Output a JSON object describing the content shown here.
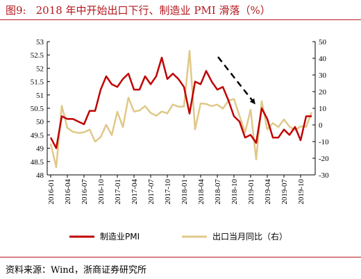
{
  "header": {
    "figure_number": "图9:",
    "title_text": "2018 年中开始出口下行、制造业 PMI 滑落（%）"
  },
  "source": {
    "text": "资料来源：Wind，浙商证券研究所"
  },
  "chart_data": {
    "type": "line",
    "x": [
      "2016-01",
      "2016-02",
      "2016-03",
      "2016-04",
      "2016-05",
      "2016-06",
      "2016-07",
      "2016-08",
      "2016-09",
      "2016-10",
      "2016-11",
      "2016-12",
      "2017-01",
      "2017-02",
      "2017-03",
      "2017-04",
      "2017-05",
      "2017-06",
      "2017-07",
      "2017-08",
      "2017-09",
      "2017-10",
      "2017-11",
      "2017-12",
      "2018-01",
      "2018-02",
      "2018-03",
      "2018-04",
      "2018-05",
      "2018-06",
      "2018-07",
      "2018-08",
      "2018-09",
      "2018-10",
      "2018-11",
      "2018-12",
      "2019-01",
      "2019-02",
      "2019-03",
      "2019-04",
      "2019-05",
      "2019-06",
      "2019-07",
      "2019-08",
      "2019-09",
      "2019-10",
      "2019-11",
      "2019-12"
    ],
    "x_tick_labels": [
      "2016-01",
      "2016-04",
      "2016-07",
      "2016-10",
      "2017-01",
      "2017-04",
      "2017-07",
      "2017-10",
      "2018-01",
      "2018-04",
      "2018-07",
      "2018-10",
      "2019-01",
      "2019-04",
      "2019-07",
      "2019-10"
    ],
    "series": [
      {
        "name": "制造业PMI",
        "axis": "left",
        "color": "#c00000",
        "values": [
          49.4,
          49.0,
          50.2,
          50.1,
          50.1,
          50.0,
          49.9,
          50.4,
          50.4,
          51.2,
          51.7,
          51.4,
          51.3,
          51.6,
          51.8,
          51.2,
          51.2,
          51.7,
          51.4,
          51.7,
          52.4,
          51.6,
          51.8,
          51.6,
          51.3,
          50.3,
          51.5,
          51.4,
          51.9,
          51.5,
          51.2,
          51.3,
          50.8,
          50.2,
          50.0,
          49.4,
          49.5,
          49.2,
          50.5,
          50.1,
          49.4,
          49.4,
          49.7,
          49.5,
          49.8,
          49.3,
          50.2,
          50.2
        ]
      },
      {
        "name": "出口当月同比（右）",
        "axis": "right",
        "color": "#e0c888",
        "values": [
          -11.2,
          -25.4,
          11.5,
          -1.8,
          -4.1,
          -4.8,
          -4.4,
          -2.8,
          -10.0,
          -7.3,
          0.1,
          -6.1,
          7.9,
          -1.3,
          16.4,
          8.0,
          8.7,
          11.3,
          7.2,
          5.5,
          8.1,
          6.9,
          12.3,
          10.9,
          11.1,
          44.5,
          -2.7,
          12.9,
          12.6,
          11.3,
          12.2,
          9.8,
          14.5,
          15.6,
          5.4,
          -4.4,
          9.1,
          -20.7,
          14.2,
          -2.7,
          1.1,
          -1.3,
          3.3,
          -1.0,
          -3.2,
          -0.9,
          -1.1,
          7.6
        ]
      }
    ],
    "y_left": {
      "min": 48,
      "max": 53,
      "ticks": [
        "48",
        "48.5",
        "49",
        "49.5",
        "50",
        "50.5",
        "51",
        "51.5",
        "52",
        "52.5",
        "53"
      ]
    },
    "y_right": {
      "min": -30,
      "max": 50,
      "ticks": [
        "-30",
        "-20",
        "-10",
        "0",
        "10",
        "20",
        "30",
        "40",
        "50"
      ]
    },
    "grid": false,
    "legend_position": "bottom",
    "annotation": "dashed-arrow-downward"
  }
}
